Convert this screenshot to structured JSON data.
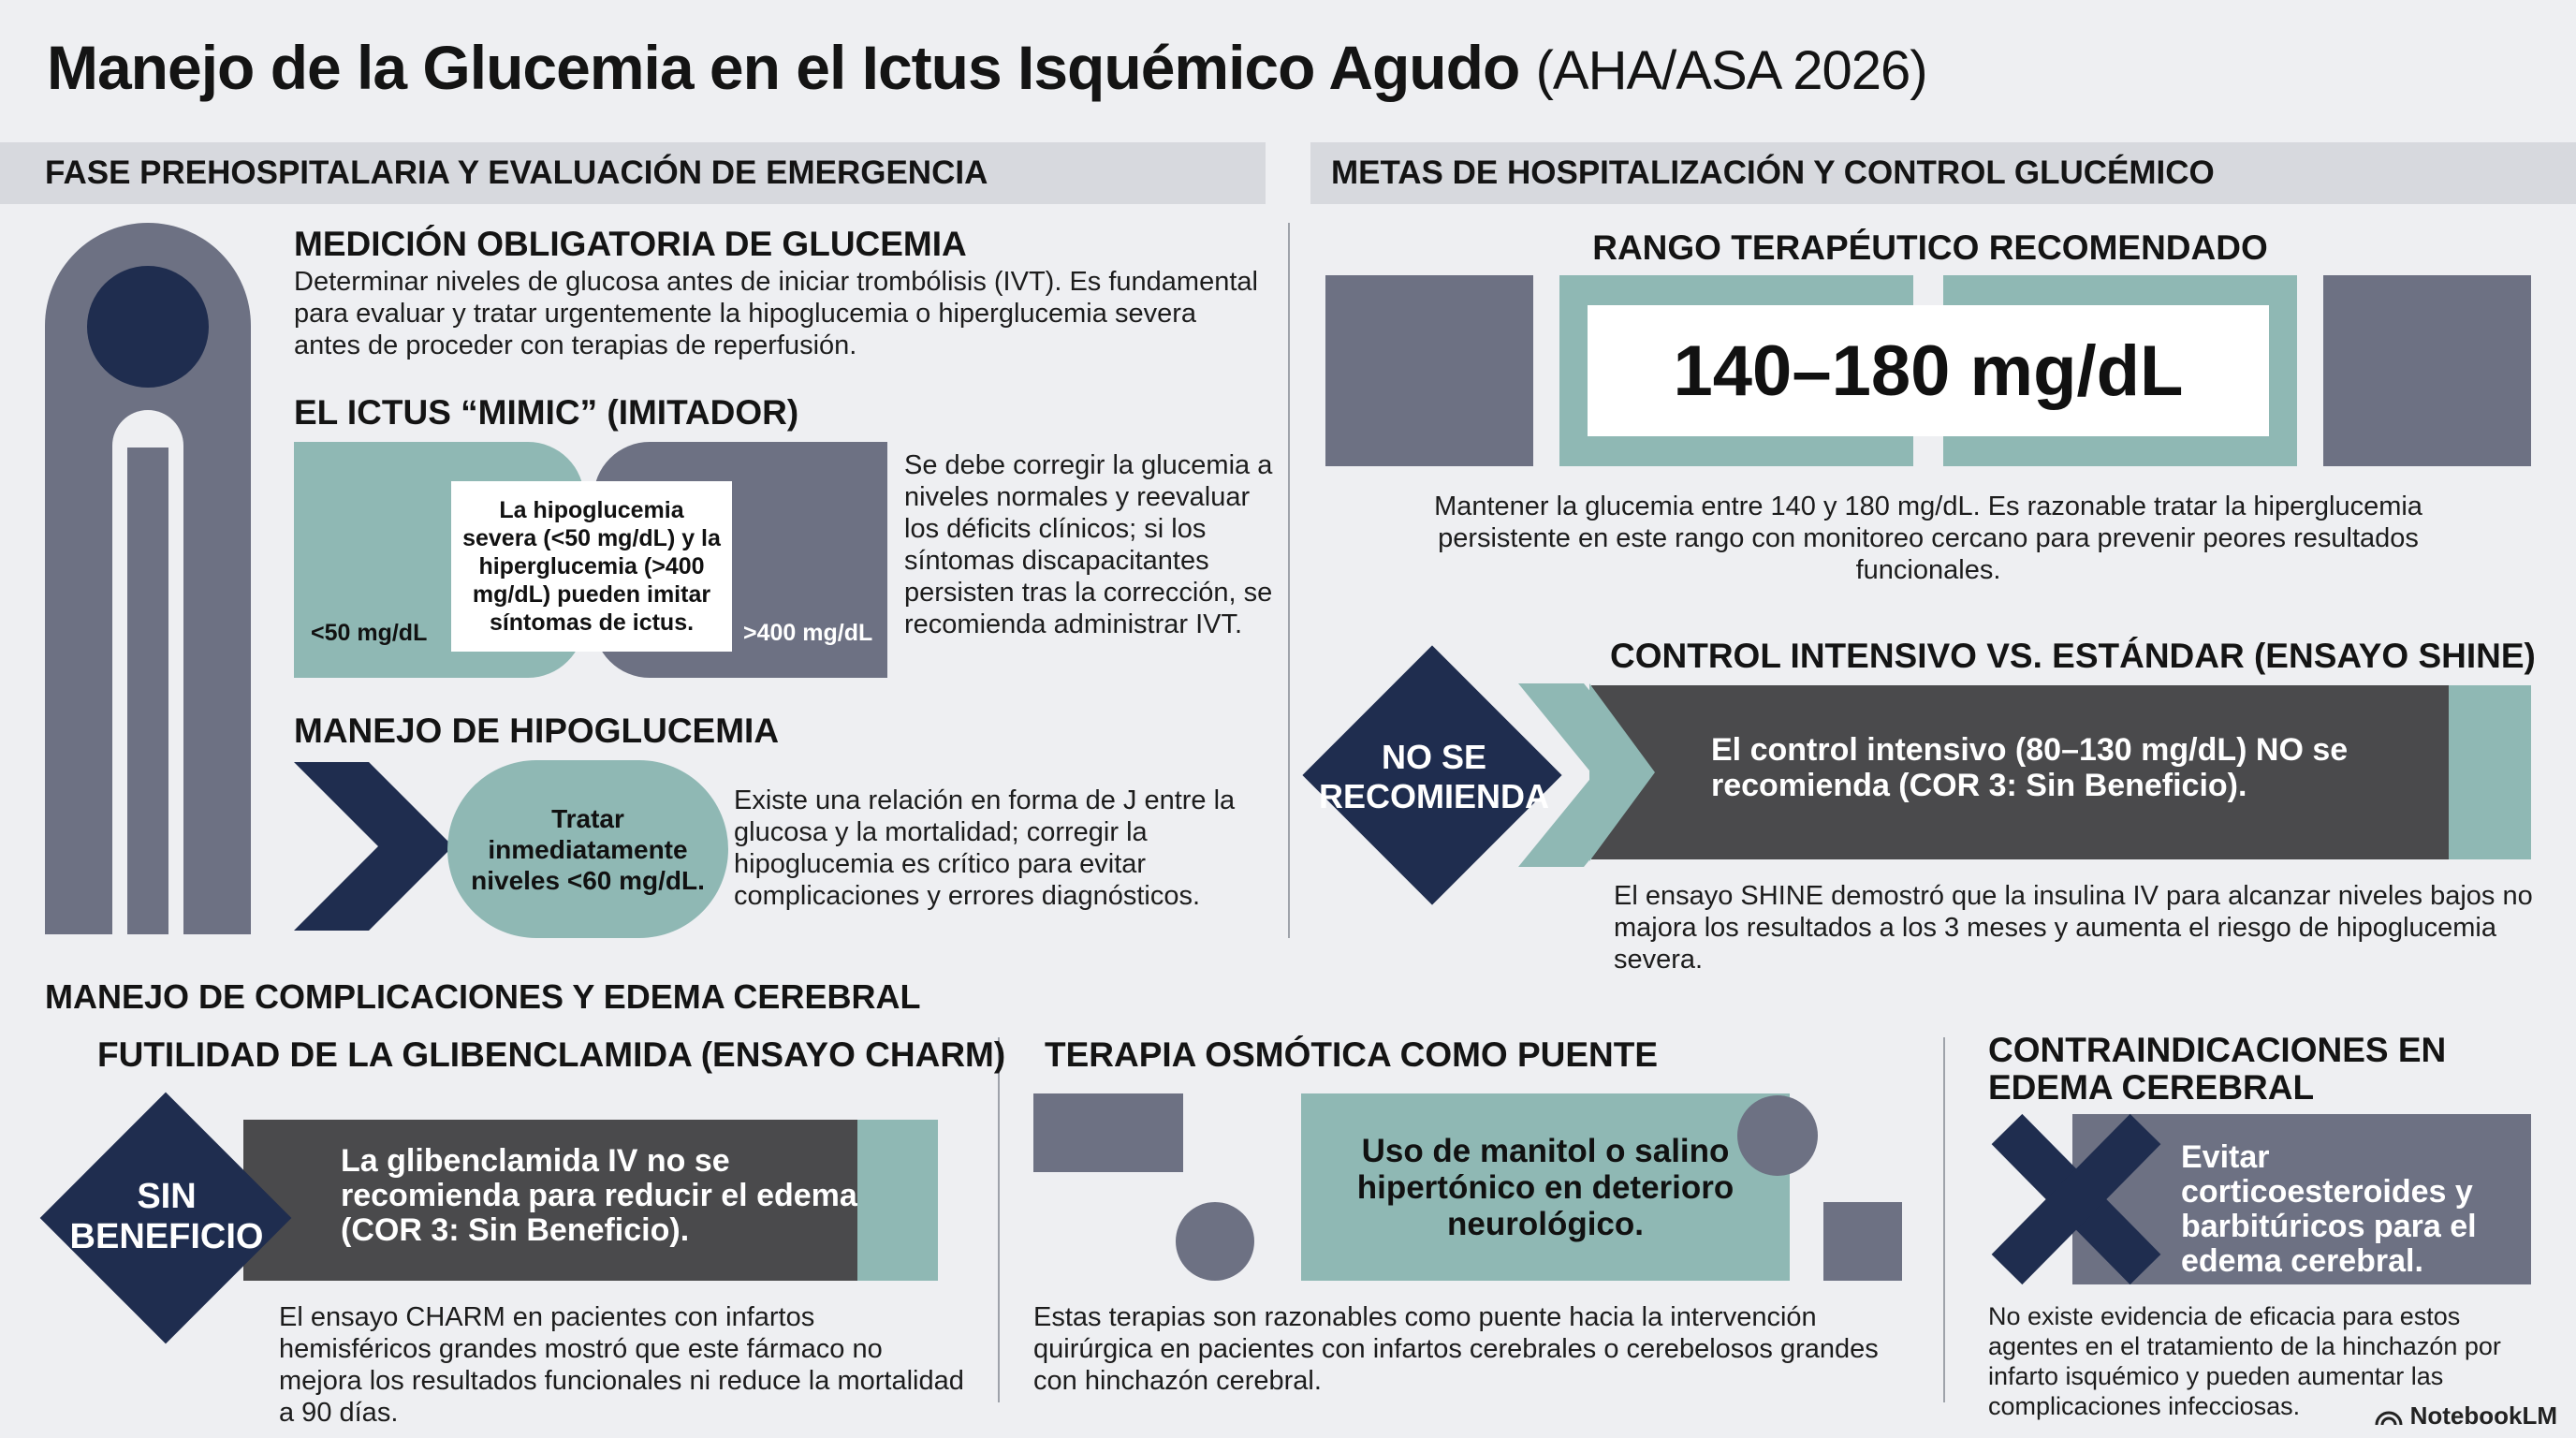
{
  "title": {
    "main": "Manejo de la Glucemia en el Ictus Isquémico Agudo",
    "sub": "(AHA/ASA 2026)"
  },
  "left_section": {
    "header": "FASE PREHOSPITALARIA Y EVALUACIÓN DE EMERGENCIA",
    "measure": {
      "heading": "MEDICIÓN OBLIGATORIA DE GLUCEMIA",
      "text": "Determinar niveles de glucosa antes de iniciar trombólisis (IVT). Es fundamental para evaluar y tratar urgentemente la hipoglucemia o hiperglucemia severa antes de proceder con terapias de reperfusión."
    },
    "mimic": {
      "heading": "EL ICTUS “MIMIC” (IMITADOR)",
      "left_label": "<50 mg/dL",
      "right_label": ">400 mg/dL",
      "box_text": "La hipoglucemia severa (<50 mg/dL) y la hiperglucemia (>400 mg/dL) pueden imitar síntomas de ictus.",
      "side_text": "Se debe corregir la glucemia a niveles normales y reevaluar los déficits clínicos; si los síntomas discapacitantes persisten tras la corrección, se recomienda administrar IVT."
    },
    "hypo": {
      "heading": "MANEJO DE HIPOGLUCEMIA",
      "circle_text": "Tratar inmediatamente niveles <60 mg/dL.",
      "text": "Existe una relación en forma de J entre la glucosa y la mortalidad; corregir la hipoglucemia es crítico para evitar complicaciones y errores diagnósticos."
    }
  },
  "right_section": {
    "header": "METAS DE HOSPITALIZACIÓN Y CONTROL GLUCÉMICO",
    "range": {
      "heading": "RANGO TERAPÉUTICO RECOMENDADO",
      "value": "140–180 mg/dL",
      "text": "Mantener la glucemia entre 140 y 180 mg/dL. Es razonable tratar la hiperglucemia persistente en este rango con monitoreo cercano para prevenir peores resultados funcionales."
    },
    "shine": {
      "heading": "CONTROL INTENSIVO VS. ESTÁNDAR (ENSAYO SHINE)",
      "badge": "NO SE RECOMIENDA",
      "bar_text": "El control intensivo (80–130 mg/dL) NO se recomienda (COR 3: Sin Beneficio).",
      "text": "El ensayo SHINE demostró que la insulina IV para alcanzar niveles bajos no majora los resultados a los 3 meses y aumenta el riesgo de hipoglucemia severa."
    }
  },
  "bottom_section": {
    "header": "MANEJO DE COMPLICACIONES Y EDEMA CEREBRAL",
    "charm": {
      "heading": "FUTILIDAD DE LA GLIBENCLAMIDA (ENSAYO CHARM)",
      "badge": "SIN BENEFICIO",
      "bar_text": "La glibenclamida IV no se recomienda para reducir el edema (COR 3: Sin Beneficio).",
      "text": "El ensayo CHARM en pacientes con infartos hemisféricos grandes mostró que este fármaco no mejora los resultados funcionales ni reduce la mortalidad a 90 días."
    },
    "osmotic": {
      "heading": "TERAPIA OSMÓTICA COMO PUENTE",
      "box_text": "Uso de manitol o salino hipertónico en deterioro neurológico.",
      "text": "Estas terapias son razonables como puente hacia la intervención quirúrgica en pacientes con infartos cerebrales o cerebelosos grandes con hinchazón cerebral."
    },
    "contra": {
      "heading": "CONTRAINDICACIONES EN EDEMA CEREBRAL",
      "bar_text": "Evitar corticoesteroides y barbitúricos para el edema cerebral.",
      "text": "No existe evidencia de eficacia para estos agentes en el tratamiento de la hinchazón por infarto isquémico y pueden aumentar las complicaciones infecciosas."
    }
  },
  "footer": {
    "logo": "NotebookLM"
  },
  "colors": {
    "teal": "#8fb8b4",
    "slate": "#6d7183",
    "navy": "#1f2d4f",
    "dark": "#4a4a4c",
    "band": "#d7d9de"
  }
}
